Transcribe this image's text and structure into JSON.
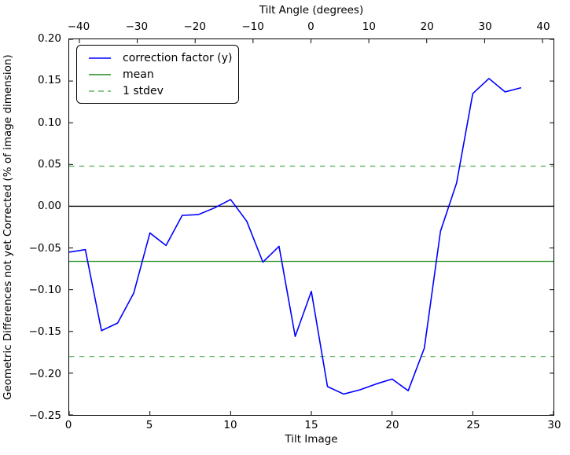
{
  "chart_data": {
    "type": "line",
    "title": "",
    "top_axis": {
      "title": "Tilt Angle (degrees)",
      "tick_values": [
        -40,
        -30,
        -20,
        -10,
        0,
        10,
        20,
        30,
        40
      ],
      "tick_labels": [
        "−40",
        "−30",
        "−20",
        "−10",
        "0",
        "10",
        "20",
        "30",
        "40"
      ],
      "lim": [
        -41.76,
        41.9
      ]
    },
    "bottom_axis": {
      "title": "Tilt Image",
      "tick_values": [
        0,
        5,
        10,
        15,
        20,
        25,
        30
      ],
      "tick_labels": [
        "0",
        "5",
        "10",
        "15",
        "20",
        "25",
        "30"
      ],
      "lim": [
        0,
        30
      ]
    },
    "left_axis": {
      "title": "Geometric Differences not yet Corrected (% of image dimension)",
      "tick_values": [
        0.2,
        0.15,
        0.1,
        0.05,
        0.0,
        -0.05,
        -0.1,
        -0.15,
        -0.2,
        -0.25
      ],
      "tick_labels": [
        "0.20",
        "0.15",
        "0.10",
        "0.05",
        "0.00",
        "−0.05",
        "−0.10",
        "−0.15",
        "−0.20",
        "−0.25"
      ],
      "lim": [
        -0.25,
        0.2
      ]
    },
    "grid": false,
    "legend_position": "upper left",
    "zero_line": {
      "y": 0.0,
      "color": "#000000"
    },
    "mean": -0.066,
    "stdev": 0.114,
    "stdev_lines": [
      0.048,
      -0.18
    ],
    "series": [
      {
        "name": "correction factor (y)",
        "color": "#0000ff",
        "style": "solid",
        "x": [
          0,
          1,
          2,
          3,
          4,
          5,
          6,
          7,
          8,
          9,
          10,
          11,
          12,
          13,
          14,
          15,
          16,
          17,
          18,
          19,
          20,
          21,
          22,
          23,
          24,
          25,
          26,
          27,
          28
        ],
        "y": [
          -0.055,
          -0.052,
          -0.149,
          -0.14,
          -0.104,
          -0.032,
          -0.047,
          -0.011,
          -0.01,
          -0.002,
          0.008,
          -0.018,
          -0.067,
          -0.048,
          -0.156,
          -0.102,
          -0.216,
          -0.225,
          -0.22,
          -0.213,
          -0.207,
          -0.221,
          -0.17,
          -0.03,
          0.028,
          0.135,
          0.153,
          0.137,
          0.142
        ]
      },
      {
        "name": "mean",
        "color": "#1f8c1f",
        "style": "solid",
        "y_const": -0.066
      },
      {
        "name": "1 stdev",
        "color": "#63b663",
        "style": "dashed",
        "y_const": [
          0.048,
          -0.18
        ]
      }
    ]
  }
}
